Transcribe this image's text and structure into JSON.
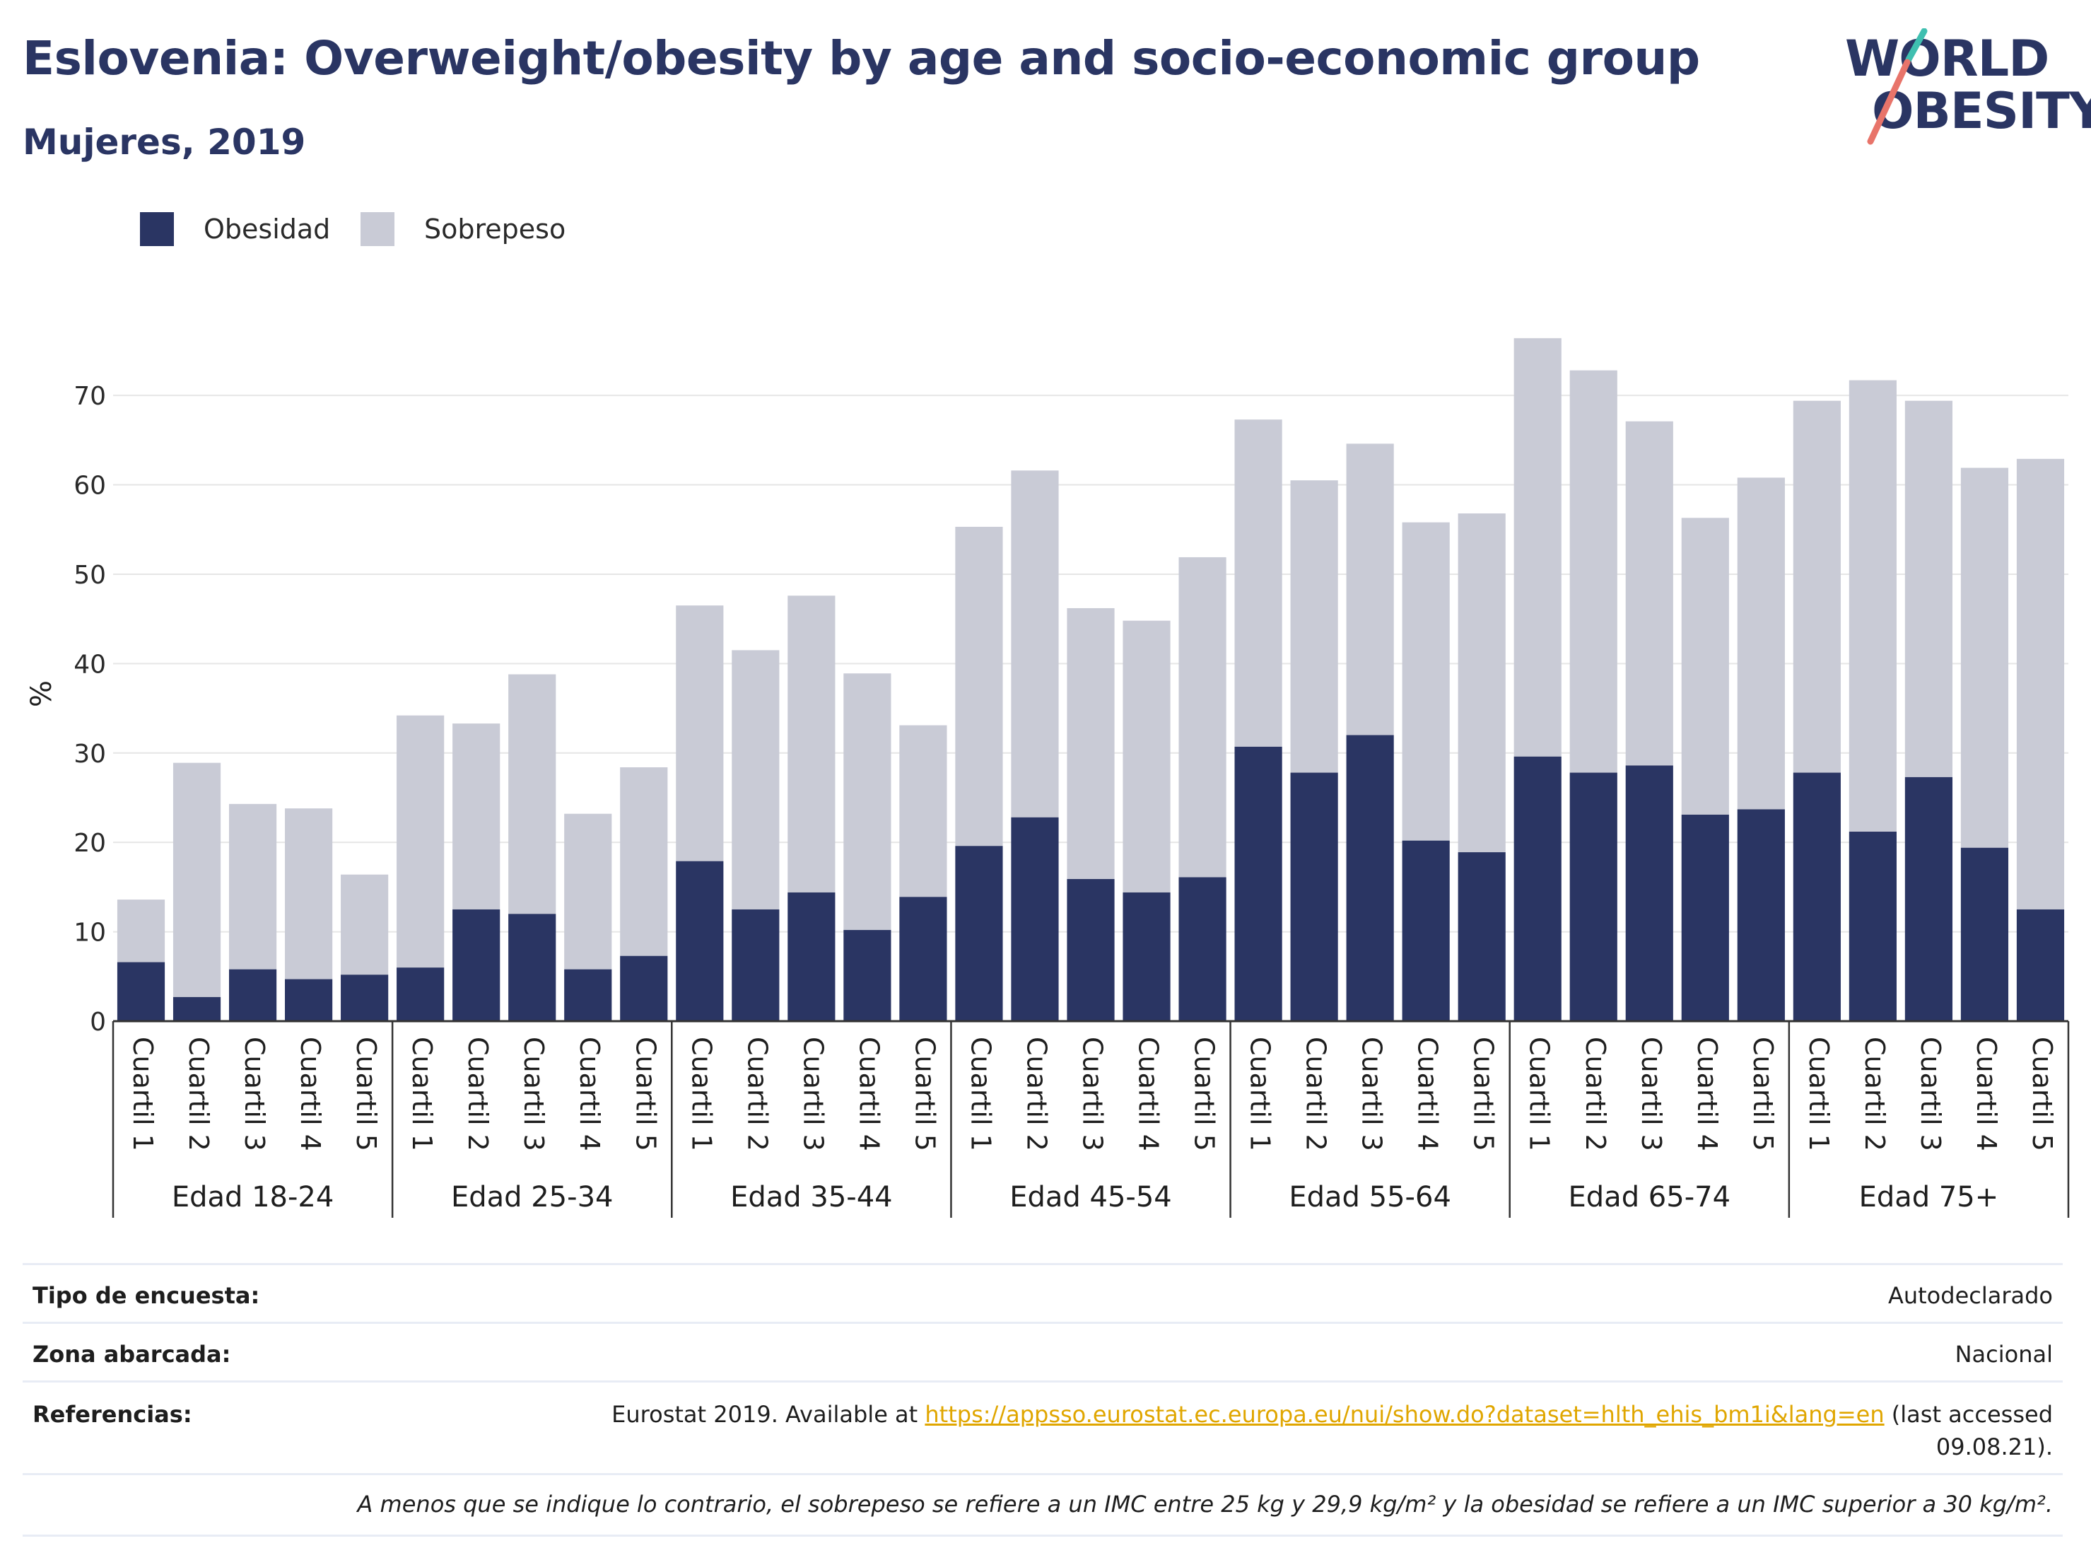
{
  "header": {
    "title": "Eslovenia: Overweight/obesity by age and socio-economic group",
    "subtitle": "Mujeres, 2019"
  },
  "logo": {
    "line1": "WORLD",
    "line2": "OBESITY"
  },
  "colors": {
    "obesity": "#2a3563",
    "overweight": "#c9cbd6",
    "grid": "#e6e6e6",
    "axis": "#333333",
    "link": "#e0a600"
  },
  "chart_data": {
    "type": "bar",
    "stacked": true,
    "ylabel": "%",
    "xlabel": "",
    "ylim": [
      0,
      78
    ],
    "yticks": [
      0,
      10,
      20,
      30,
      40,
      50,
      60,
      70
    ],
    "grid": "horizontal",
    "legend_position": "top-left",
    "legend": [
      "Obesidad",
      "Sobrepeso"
    ],
    "groups": [
      {
        "label": "Edad 18-24",
        "categories": [
          "Cuartil 1",
          "Cuartil 2",
          "Cuartil 3",
          "Cuartil 4",
          "Cuartil 5"
        ],
        "obesidad": [
          6.6,
          2.7,
          5.8,
          4.7,
          5.2
        ],
        "sobrepeso": [
          7.0,
          26.2,
          18.5,
          19.1,
          11.2
        ]
      },
      {
        "label": "Edad 25-34",
        "categories": [
          "Cuartil 1",
          "Cuartil 2",
          "Cuartil 3",
          "Cuartil 4",
          "Cuartil 5"
        ],
        "obesidad": [
          6.0,
          12.5,
          12.0,
          5.8,
          7.3
        ],
        "sobrepeso": [
          28.2,
          20.8,
          26.8,
          17.4,
          21.1
        ]
      },
      {
        "label": "Edad 35-44",
        "categories": [
          "Cuartil 1",
          "Cuartil 2",
          "Cuartil 3",
          "Cuartil 4",
          "Cuartil 5"
        ],
        "obesidad": [
          17.9,
          12.5,
          14.4,
          10.2,
          13.9
        ],
        "sobrepeso": [
          28.6,
          29.0,
          33.2,
          28.7,
          19.2
        ]
      },
      {
        "label": "Edad 45-54",
        "categories": [
          "Cuartil 1",
          "Cuartil 2",
          "Cuartil 3",
          "Cuartil 4",
          "Cuartil 5"
        ],
        "obesidad": [
          19.6,
          22.8,
          15.9,
          14.4,
          16.1
        ],
        "sobrepeso": [
          35.7,
          38.8,
          30.3,
          30.4,
          35.8
        ]
      },
      {
        "label": "Edad 55-64",
        "categories": [
          "Cuartil 1",
          "Cuartil 2",
          "Cuartil 3",
          "Cuartil 4",
          "Cuartil 5"
        ],
        "obesidad": [
          30.7,
          27.8,
          32.0,
          20.2,
          18.9
        ],
        "sobrepeso": [
          36.6,
          32.7,
          32.6,
          35.6,
          37.9
        ]
      },
      {
        "label": "Edad 65-74",
        "categories": [
          "Cuartil 1",
          "Cuartil 2",
          "Cuartil 3",
          "Cuartil 4",
          "Cuartil 5"
        ],
        "obesidad": [
          29.6,
          27.8,
          28.6,
          23.1,
          23.7
        ],
        "sobrepeso": [
          46.8,
          45.0,
          38.5,
          33.2,
          37.1
        ]
      },
      {
        "label": "Edad 75+",
        "categories": [
          "Cuartil 1",
          "Cuartil 2",
          "Cuartil 3",
          "Cuartil 4",
          "Cuartil 5"
        ],
        "obesidad": [
          27.8,
          21.2,
          27.3,
          19.4,
          12.5
        ],
        "sobrepeso": [
          41.6,
          50.5,
          42.1,
          42.5,
          50.4
        ]
      }
    ]
  },
  "info": {
    "survey_label": "Tipo de encuesta:",
    "survey_value": "Autodeclarado",
    "area_label": "Zona abarcada:",
    "area_value": "Nacional",
    "refs_label": "Referencias:",
    "refs_prefix": "Eurostat 2019. Available at ",
    "refs_link": "https://appsso.eurostat.ec.europa.eu/nui/show.do?dataset=hlth_ehis_bm1i&lang=en",
    "refs_suffix": " (last accessed",
    "refs_date": "09.08.21).",
    "footnote": "A menos que se indique lo contrario, el sobrepeso se refiere a un IMC entre 25 kg y 29,9 kg/m² y la obesidad se refiere a un IMC superior a 30 kg/m²."
  }
}
